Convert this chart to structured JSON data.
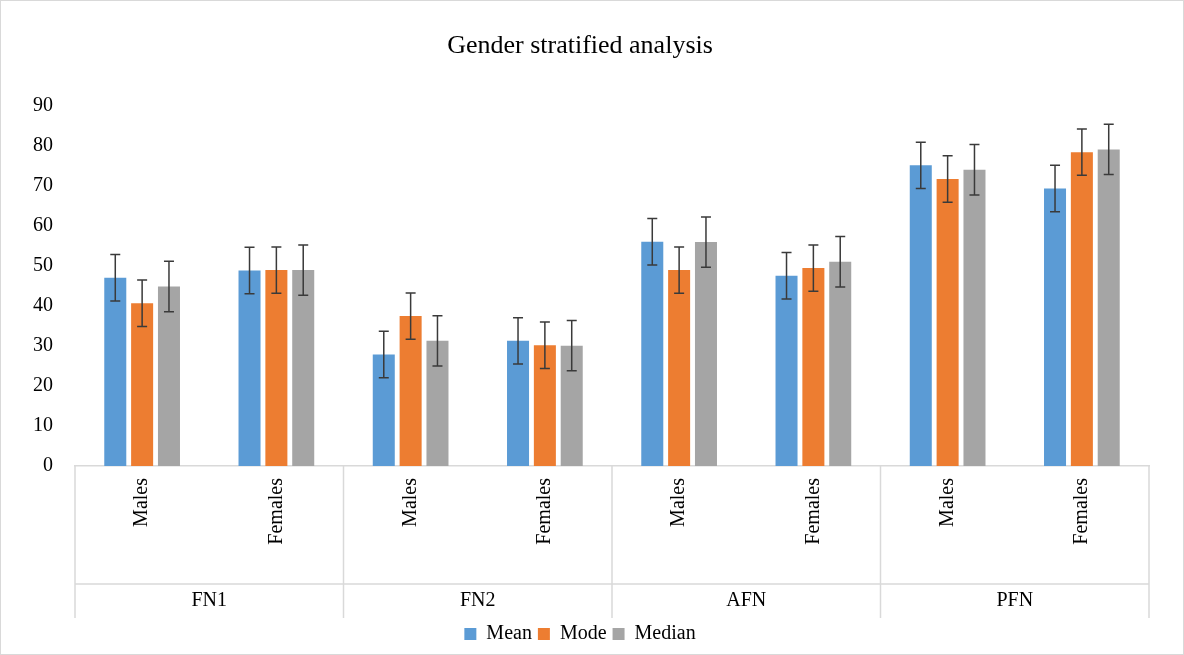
{
  "chart_data": {
    "type": "bar",
    "title": "Gender stratified analysis",
    "categories": [
      "Males",
      "Females",
      "Males",
      "Females",
      "Males",
      "Females",
      "Males",
      "Females"
    ],
    "series": [
      {
        "name": "Mean",
        "color": "#5b9bd5",
        "values": [
          47.1,
          48.9,
          27.9,
          31.3,
          56.1,
          47.6,
          75.2,
          69.4
        ],
        "errors": [
          5.8,
          5.8,
          5.8,
          5.8,
          5.8,
          5.8,
          5.8,
          5.8
        ]
      },
      {
        "name": "Mode",
        "color": "#ed7d31",
        "values": [
          40.7,
          49.0,
          37.5,
          30.2,
          49.0,
          49.5,
          71.8,
          78.5
        ],
        "errors": [
          5.8,
          5.8,
          5.8,
          5.8,
          5.8,
          5.8,
          5.8,
          5.8
        ]
      },
      {
        "name": "Median",
        "color": "#a5a5a5",
        "values": [
          44.9,
          49.0,
          31.3,
          30.1,
          56.0,
          51.1,
          74.1,
          79.2
        ],
        "errors": [
          6.3,
          6.3,
          6.3,
          6.3,
          6.3,
          6.3,
          6.3,
          6.3
        ]
      }
    ],
    "annotations": [
      "FN1",
      "FN2",
      "AFN",
      "PFN"
    ],
    "ylim": [
      0,
      90
    ],
    "yticks": [
      0,
      10,
      20,
      30,
      40,
      50,
      60,
      70,
      80,
      90
    ],
    "grid": false,
    "legend": "bottom"
  }
}
